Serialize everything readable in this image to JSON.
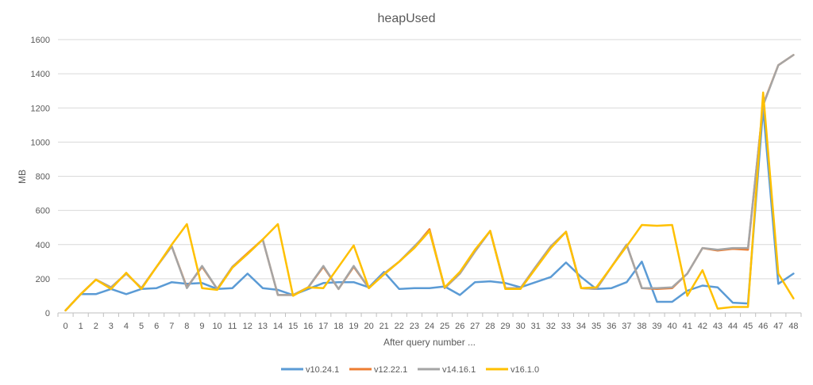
{
  "chart_data": {
    "type": "line",
    "title": "heapUsed",
    "xlabel": "After  query number ...",
    "ylabel": "MB",
    "ylim": [
      0,
      1600
    ],
    "yticks": [
      0,
      200,
      400,
      600,
      800,
      1000,
      1200,
      1400,
      1600
    ],
    "grid": true,
    "legend_position": "bottom",
    "categories": [
      "0",
      "1",
      "2",
      "3",
      "4",
      "5",
      "6",
      "7",
      "8",
      "9",
      "10",
      "11",
      "12",
      "13",
      "14",
      "15",
      "16",
      "17",
      "18",
      "19",
      "20",
      "21",
      "22",
      "23",
      "24",
      "25",
      "26",
      "27",
      "28",
      "29",
      "30",
      "31",
      "32",
      "33",
      "34",
      "35",
      "36",
      "37",
      "38",
      "39",
      "40",
      "41",
      "42",
      "43",
      "44",
      "45",
      "46",
      "47",
      "48"
    ],
    "series": [
      {
        "name": "v10.24.1",
        "color": "#5b9bd5",
        "values": [
          15,
          110,
          110,
          140,
          110,
          140,
          145,
          180,
          170,
          175,
          140,
          145,
          230,
          145,
          135,
          105,
          140,
          175,
          180,
          180,
          150,
          240,
          140,
          145,
          145,
          155,
          105,
          180,
          185,
          175,
          150,
          180,
          210,
          295,
          210,
          140,
          145,
          180,
          300,
          65,
          65,
          130,
          160,
          150,
          60,
          55,
          1200,
          170,
          230
        ]
      },
      {
        "name": "v12.22.1",
        "color": "#ed7d31",
        "values": [
          15,
          110,
          195,
          150,
          230,
          145,
          270,
          390,
          150,
          270,
          140,
          270,
          350,
          430,
          105,
          105,
          150,
          270,
          140,
          270,
          145,
          230,
          300,
          385,
          490,
          145,
          230,
          360,
          480,
          145,
          145,
          270,
          390,
          475,
          145,
          140,
          270,
          400,
          145,
          140,
          145,
          230,
          380,
          365,
          375,
          370,
          1220,
          1450,
          1510
        ]
      },
      {
        "name": "v14.16.1",
        "color": "#a5a5a5",
        "values": [
          15,
          110,
          195,
          150,
          230,
          145,
          270,
          390,
          145,
          275,
          140,
          270,
          345,
          430,
          105,
          105,
          150,
          275,
          140,
          275,
          145,
          230,
          300,
          390,
          480,
          145,
          230,
          360,
          480,
          145,
          145,
          270,
          390,
          475,
          145,
          140,
          270,
          400,
          145,
          145,
          150,
          230,
          380,
          370,
          380,
          380,
          1215,
          1450,
          1510
        ]
      },
      {
        "name": "v16.1.0",
        "color": "#ffc000",
        "values": [
          15,
          110,
          195,
          140,
          235,
          140,
          270,
          400,
          520,
          145,
          135,
          265,
          345,
          430,
          520,
          100,
          150,
          145,
          270,
          395,
          145,
          225,
          300,
          380,
          480,
          150,
          240,
          370,
          480,
          140,
          140,
          260,
          380,
          475,
          145,
          150,
          270,
          390,
          515,
          510,
          515,
          100,
          250,
          25,
          35,
          35,
          1290,
          230,
          85
        ]
      }
    ]
  }
}
